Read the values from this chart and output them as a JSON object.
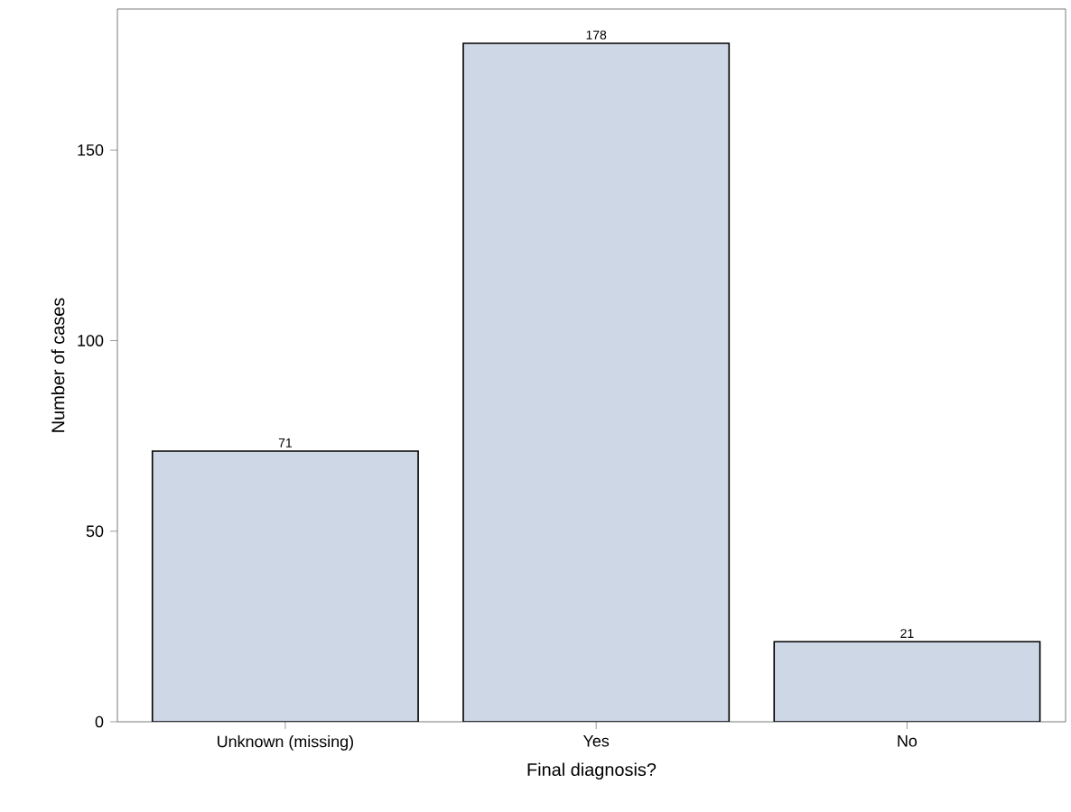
{
  "chart_data": {
    "type": "bar",
    "xlabel": "Final diagnosis?",
    "ylabel": "Number of cases",
    "categories": [
      "Unknown (missing)",
      "Yes",
      "No"
    ],
    "values": [
      71,
      178,
      21
    ],
    "color": "#cdd7e6",
    "ylim": [
      0,
      187
    ],
    "yticks": [
      0,
      50,
      100,
      150
    ],
    "data_labels": true
  }
}
